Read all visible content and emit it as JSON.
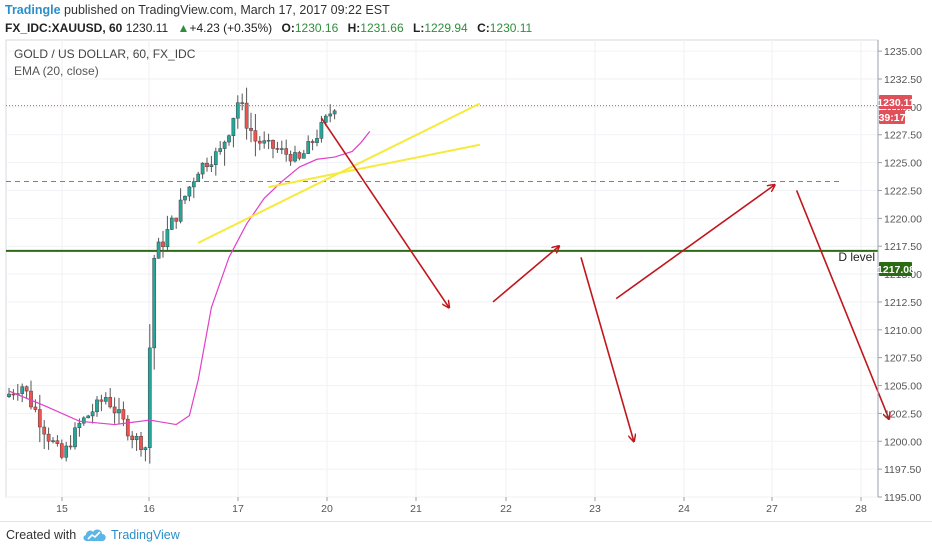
{
  "header": {
    "author": "Tradingle",
    "published_text": " published on TradingView.com, March 17, 2017 09:22 EST",
    "symbol": "FX_IDC:XAUUSD, 60",
    "last": "1230.11",
    "change_arrow": "▲",
    "change": "+4.23 (+0.35%)",
    "open_label": "O:",
    "open": "1230.16",
    "high_label": "H:",
    "high": "1231.66",
    "low_label": "L:",
    "low": "1229.94",
    "close_label": "C:",
    "close": "1230.11"
  },
  "chart_data": {
    "type": "candlestick",
    "title": "GOLD / US DOLLAR, 60, FX_IDC",
    "indicator_label": "EMA (20, close)",
    "x_ticks": [
      "15",
      "16",
      "17",
      "20",
      "21",
      "22",
      "23",
      "24",
      "27",
      "28"
    ],
    "y_ticks": [
      "1235.00",
      "1232.50",
      "1230.00",
      "1227.50",
      "1225.00",
      "1222.50",
      "1220.00",
      "1217.50",
      "1215.00",
      "1212.50",
      "1210.00",
      "1207.50",
      "1205.00",
      "1202.50",
      "1200.00",
      "1197.50",
      "1195.00"
    ],
    "ylim": [
      1195,
      1236
    ],
    "last_price_label": "1230.11",
    "countdown_label": "39:17",
    "level_price_label": "1217.08",
    "level_line": {
      "price": 1217.08,
      "label": "D level"
    },
    "dashed_level": 1223.3,
    "candle_segments": [
      {
        "from": 1204.0,
        "to": 1205.0,
        "bars": 4,
        "vol": 1.4
      },
      {
        "from": 1205.0,
        "to": 1200.5,
        "bars": 6,
        "vol": 2.0
      },
      {
        "from": 1200.5,
        "to": 1198.5,
        "bars": 3,
        "vol": 1.6
      },
      {
        "from": 1198.5,
        "to": 1201.5,
        "bars": 4,
        "vol": 1.5
      },
      {
        "from": 1201.5,
        "to": 1204.0,
        "bars": 6,
        "vol": 1.5
      },
      {
        "from": 1204.0,
        "to": 1200.5,
        "bars": 6,
        "vol": 1.6
      },
      {
        "from": 1200.5,
        "to": 1199.5,
        "bars": 3,
        "vol": 1.5
      },
      {
        "from": 1200.5,
        "to": 1216.5,
        "bars": 2,
        "vol": 3.5
      },
      {
        "from": 1216.5,
        "to": 1219.5,
        "bars": 4,
        "vol": 2.0
      },
      {
        "from": 1219.5,
        "to": 1224.5,
        "bars": 6,
        "vol": 1.8
      },
      {
        "from": 1224.5,
        "to": 1226.0,
        "bars": 5,
        "vol": 1.5
      },
      {
        "from": 1226.0,
        "to": 1230.5,
        "bars": 4,
        "vol": 2.5
      },
      {
        "from": 1230.5,
        "to": 1227.0,
        "bars": 4,
        "vol": 2.2
      },
      {
        "from": 1227.0,
        "to": 1226.0,
        "bars": 6,
        "vol": 1.3
      },
      {
        "from": 1226.0,
        "to": 1225.2,
        "bars": 4,
        "vol": 1.3
      },
      {
        "from": 1225.2,
        "to": 1227.5,
        "bars": 4,
        "vol": 1.5
      },
      {
        "from": 1227.5,
        "to": 1230.11,
        "bars": 4,
        "vol": 1.4
      }
    ],
    "ema_points": [
      [
        0,
        1204.5
      ],
      [
        8,
        1203.2
      ],
      [
        16,
        1201.8
      ],
      [
        24,
        1201.5
      ],
      [
        32,
        1201.9
      ],
      [
        38,
        1201.5
      ],
      [
        41,
        1202.3
      ],
      [
        43,
        1205.5
      ],
      [
        46,
        1212.0
      ],
      [
        50,
        1216.5
      ],
      [
        54,
        1219.5
      ],
      [
        58,
        1221.8
      ],
      [
        62,
        1223.3
      ],
      [
        66,
        1224.6
      ],
      [
        70,
        1225.3
      ],
      [
        74,
        1225.5
      ],
      [
        78,
        1226.0
      ],
      [
        80,
        1226.8
      ],
      [
        82,
        1227.8
      ]
    ],
    "trend_lines": [
      {
        "from": [
          43,
          1217.8
        ],
        "to": [
          107,
          1230.3
        ]
      },
      {
        "from": [
          59,
          1222.8
        ],
        "to": [
          107,
          1226.6
        ]
      }
    ],
    "projection_arrows": [
      {
        "from": [
          71,
          1229.0
        ],
        "to": [
          100,
          1212.0
        ]
      },
      {
        "from": [
          110,
          1212.5
        ],
        "to": [
          125,
          1217.5
        ]
      },
      {
        "from": [
          130,
          1216.5
        ],
        "to": [
          142,
          1200.0
        ]
      },
      {
        "from": [
          138,
          1212.8
        ],
        "to": [
          174,
          1223.0
        ]
      },
      {
        "from": [
          179,
          1222.5
        ],
        "to": [
          200,
          1202.0
        ]
      }
    ]
  },
  "footer": {
    "created_with": "Created with",
    "brand": "TradingView"
  },
  "colors": {
    "up_candle": "#26a69a",
    "down_candle": "#ef5350",
    "ema": "#e040c8",
    "trend": "#f6ea3a",
    "arrow": "#c0171d",
    "level": "#2d6a14",
    "last_price": "#e0505a"
  }
}
